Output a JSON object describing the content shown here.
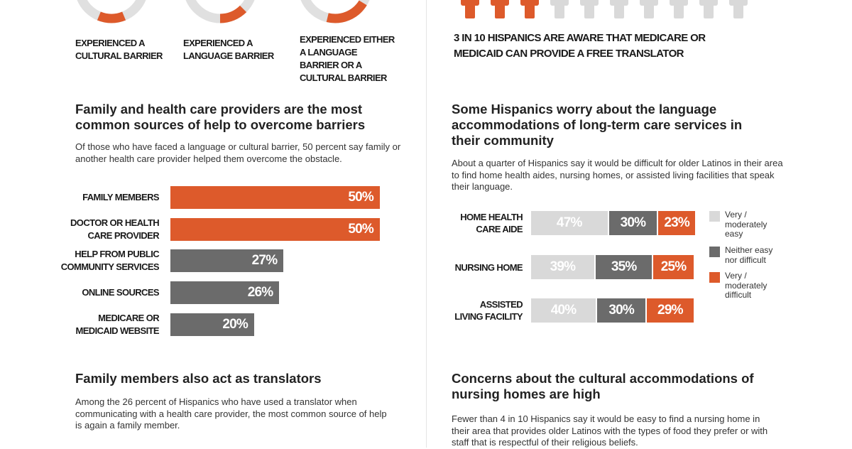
{
  "colors": {
    "orange": "#dd5a2b",
    "dark": "#6b6b6b",
    "light": "#d9d9d9",
    "track": "#e0e0e0"
  },
  "donuts": [
    {
      "label": "Experienced a cultural barrier"
    },
    {
      "label": "Experienced a language barrier"
    },
    {
      "label": "Experienced either a language barrier or a cultural barrier"
    }
  ],
  "pictogram": {
    "highlighted": 3,
    "total": 10,
    "icon": "person-icon",
    "caption": "3 in 10 Hispanics are aware that Medicare or Medicaid can provide a free translator"
  },
  "sections": {
    "help": {
      "title": "Family and health care providers are the most common sources of help to overcome barriers",
      "body": "Of those who have faced a language or cultural barrier, 50 percent say family or another health care provider helped them overcome the obstacle."
    },
    "ltc": {
      "title": "Some Hispanics worry about the language accommodations of long-term care services in their community",
      "body": "About a quarter of Hispanics say it would be difficult for older Latinos in their area to find home health aides, nursing homes, or assisted living facilities that speak their language."
    },
    "translators": {
      "title": "Family members also act as translators",
      "body": "Among the 26 percent of Hispanics who have used a translator when communicating with a health care provider, the most common source of help is again a family member."
    },
    "cultural": {
      "title": "Concerns about the cultural accommodations of nursing homes are high",
      "body": "Fewer than 4 in 10 Hispanics say it would be easy to find a nursing home in their area that provides older Latinos with the types of food they prefer or with staff that is respectful of their religious beliefs."
    }
  },
  "chart_data": [
    {
      "type": "bar",
      "orientation": "horizontal",
      "categories": [
        "Family members",
        "Doctor or health care provider",
        "Help from public community services",
        "Online sources",
        "Medicare or Medicaid website"
      ],
      "values": [
        50,
        50,
        27,
        26,
        20
      ],
      "labels": [
        "50%",
        "50%",
        "27%",
        "26%",
        "20%"
      ],
      "colors": [
        "#dd5a2b",
        "#dd5a2b",
        "#6b6b6b",
        "#6b6b6b",
        "#6b6b6b"
      ]
    },
    {
      "type": "bar",
      "orientation": "horizontal",
      "stacked": true,
      "categories": [
        "Home health care aide",
        "Nursing home",
        "Assisted living facility"
      ],
      "series": [
        {
          "name": "Very / moderately easy",
          "color": "#d9d9d9",
          "values": [
            47,
            39,
            40
          ],
          "labels": [
            "47%",
            "39%",
            "40%"
          ]
        },
        {
          "name": "Neither easy nor difficult",
          "color": "#6b6b6b",
          "values": [
            30,
            35,
            30
          ],
          "labels": [
            "30%",
            "35%",
            "30%"
          ]
        },
        {
          "name": "Very / moderately difficult",
          "color": "#dd5a2b",
          "values": [
            23,
            25,
            29
          ],
          "labels": [
            "23%",
            "25%",
            "29%"
          ]
        }
      ],
      "legend": "right"
    }
  ]
}
